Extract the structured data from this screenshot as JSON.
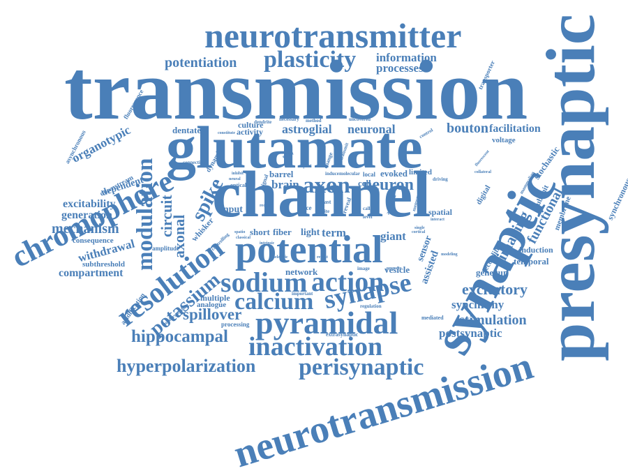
{
  "colors": {
    "word": "#4a7fb8",
    "background": "#ffffff"
  },
  "words": {
    "transmission": "transmission",
    "neurotransmitter": "neurotransmitter",
    "presynaptic": "presynaptic",
    "glutamate": "glutamate",
    "channel": "channel",
    "synaptic": "synaptic",
    "neurotransmission": "neurotransmission",
    "potential": "potential",
    "chromophore": "chromophore",
    "resolution": "resolution",
    "plasticity": "plasticity",
    "potentiation": "potentiation",
    "information": "information",
    "processes": "processes",
    "modulation": "modulation",
    "axon": "axon",
    "neuron": "neuron",
    "spike": "spike",
    "sodium": "sodium",
    "action": "action",
    "synapse": "synapse",
    "calcium": "calcium",
    "pyramidal": "pyramidal",
    "inactivation": "inactivation",
    "perisynaptic": "perisynaptic",
    "hyperpolarization": "hyperpolarization",
    "hippocampal": "hippocampal",
    "spillover": "spillover",
    "potassium": "potassium",
    "excitatory": "excitatory",
    "synchrony": "synchrony",
    "stimulation": "stimulation",
    "postsynaptic": "postsynaptic",
    "imaging": "imaging",
    "functional": "functional",
    "organotypic": "organotypic",
    "excitability": "excitability",
    "generation": "generation",
    "mechanism": "mechanism",
    "consequence": "consequence",
    "withdrawal": "withdrawal",
    "compartment": "compartment",
    "subthreshold": "subthreshold",
    "dependent": "dependent",
    "downstream": "downstream",
    "asynchronous": "asynchronous",
    "fluorescence": "fluorescence",
    "dentate": "dentate",
    "culture": "culture",
    "activity": "activity",
    "astroglial": "astroglial",
    "neuronal": "neuronal",
    "bouton": "bouton",
    "facilitation": "facilitation",
    "voltage": "voltage",
    "stochastic": "stochastic",
    "synchronous": "synchronous",
    "circuit": "circuit",
    "axonal": "axonal",
    "brain": "brain",
    "evoked": "evoked",
    "limited": "limited",
    "local": "local",
    "cell": "cell",
    "barrel": "barrel",
    "input": "input",
    "whisker": "whisker",
    "short": "short",
    "fiber": "fiber",
    "term": "term",
    "light": "light",
    "giant": "giant",
    "assisted": "assisted",
    "sensor": "sensor",
    "spatial": "spatial",
    "digital": "digital",
    "subunit": "subunit",
    "membrane": "membrane",
    "induction": "induction",
    "temporal": "temporal",
    "genegun": "genegun",
    "recording": "recording",
    "network": "network",
    "vesicle": "vesicle",
    "multiple": "multiple",
    "analogue": "analogue",
    "amplitude": "amplitude",
    "acidification": "acidification",
    "understanding": "understanding",
    "processing": "processing",
    "mediated": "mediated",
    "extrasynaptic": "extrasynaptic",
    "transporter": "transporter",
    "connection": "connection",
    "dynamic": "dynamic",
    "optical": "optical",
    "slice": "slice",
    "reveal": "reveal",
    "fast": "fast",
    "astroglia": "astroglia",
    "controlling": "controlling",
    "dendrite": "dendrite",
    "uncovered": "uncovered",
    "method": "method",
    "necessary": "necessary",
    "control": "control",
    "effect": "effect",
    "signal": "signal",
    "change": "change",
    "induce": "induce",
    "molecular": "molecular",
    "driving": "driving",
    "memory": "memory",
    "level": "level",
    "regulation": "regulation",
    "image": "image",
    "important": "important",
    "promote": "promote",
    "spatio": "spatio",
    "classical": "classical",
    "recent": "recent",
    "intrinsic": "intrinsic",
    "mammalian": "mammalian",
    "collateral": "collateral",
    "fluorescent": "fluorescent",
    "transmit": "transmit",
    "speed": "speed",
    "inhibit": "inhibit",
    "site": "site",
    "call": "call",
    "constitute": "constitute",
    "neural": "neural",
    "require": "require",
    "modeling": "modeling",
    "bioelectric": "bioelectric",
    "single": "single",
    "interact": "interact",
    "cortical": "cortical"
  }
}
